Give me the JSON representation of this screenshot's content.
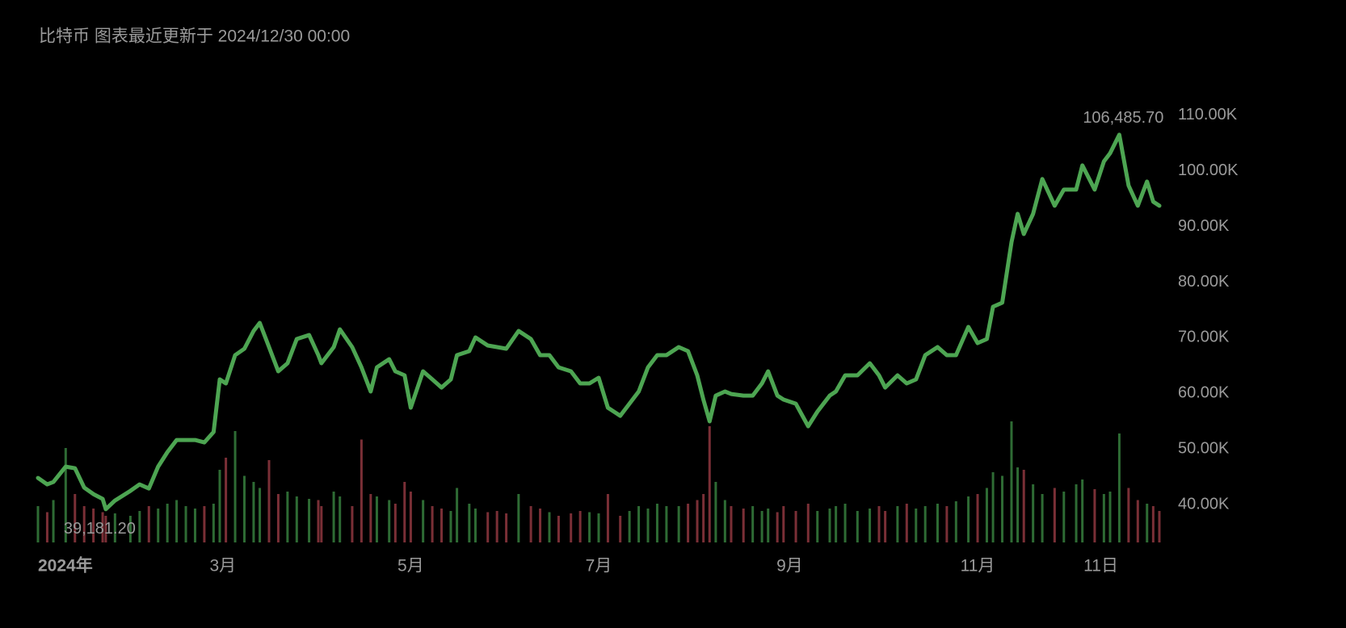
{
  "chart_data": {
    "type": "line",
    "title": "比特币 图表最近更新于 2024/12/30 00:00",
    "x": [
      0,
      3,
      5,
      9,
      12,
      15,
      18,
      21,
      22,
      25,
      30,
      33,
      36,
      39,
      42,
      45,
      48,
      51,
      54,
      57,
      59,
      61,
      64,
      67,
      70,
      72,
      75,
      78,
      81,
      84,
      88,
      91,
      92,
      96,
      98,
      102,
      105,
      108,
      110,
      114,
      116,
      119,
      121,
      125,
      128,
      131,
      134,
      136,
      140,
      142,
      146,
      149,
      152,
      156,
      160,
      163,
      166,
      169,
      173,
      176,
      179,
      182,
      185,
      189,
      192,
      195,
      198,
      201,
      204,
      208,
      211,
      214,
      216,
      218,
      220,
      223,
      225,
      229,
      232,
      235,
      237,
      240,
      242,
      246,
      250,
      253,
      257,
      259,
      262,
      266,
      270,
      273,
      275,
      279,
      282,
      285,
      288,
      292,
      295,
      298,
      302,
      305,
      308,
      310,
      313,
      316,
      318,
      320,
      323,
      326,
      330,
      333,
      337,
      339,
      343,
      346,
      348,
      351,
      354,
      357,
      360,
      362,
      364
    ],
    "values": [
      44790,
      43630,
      44070,
      46820,
      46530,
      43050,
      41890,
      41020,
      39181.2,
      40730,
      42470,
      43630,
      42900,
      46820,
      49440,
      51620,
      51620,
      51620,
      51180,
      53070,
      62510,
      61780,
      66860,
      68020,
      71220,
      72670,
      68310,
      63960,
      65410,
      69770,
      70490,
      66860,
      65410,
      68310,
      71510,
      68310,
      64680,
      60330,
      64680,
      66140,
      63960,
      63230,
      57420,
      63960,
      62510,
      61050,
      62510,
      66860,
      67590,
      70060,
      68600,
      68310,
      68020,
      71220,
      69770,
      66860,
      66860,
      64680,
      63960,
      61780,
      61780,
      62800,
      57420,
      55970,
      58150,
      60330,
      64680,
      66860,
      66860,
      68310,
      67590,
      63230,
      58880,
      54960,
      59600,
      60330,
      59890,
      59600,
      59600,
      61780,
      63960,
      59600,
      58880,
      58150,
      54080,
      56700,
      59600,
      60330,
      63230,
      63230,
      65410,
      63230,
      61050,
      63230,
      61780,
      62510,
      66860,
      68310,
      66860,
      66860,
      71940,
      69040,
      69770,
      75570,
      76300,
      87190,
      92270,
      88640,
      92270,
      98520,
      93720,
      96630,
      96630,
      100980,
      96630,
      101710,
      103160,
      106485.7,
      97350,
      93720,
      98080,
      94450,
      93720
    ],
    "color": "#4da552",
    "volume": {
      "values": [
        30,
        25,
        35,
        78,
        40,
        30,
        28,
        25,
        22,
        24,
        22,
        26,
        30,
        28,
        32,
        35,
        30,
        28,
        30,
        32,
        60,
        70,
        92,
        55,
        50,
        45,
        68,
        40,
        42,
        38,
        36,
        35,
        30,
        42,
        38,
        30,
        85,
        40,
        38,
        35,
        32,
        50,
        42,
        35,
        30,
        28,
        26,
        45,
        32,
        28,
        25,
        26,
        24,
        40,
        30,
        28,
        25,
        22,
        24,
        26,
        25,
        24,
        40,
        22,
        26,
        30,
        28,
        32,
        30,
        30,
        32,
        35,
        40,
        96,
        50,
        35,
        30,
        28,
        30,
        26,
        28,
        25,
        30,
        26,
        32,
        26,
        28,
        30,
        32,
        26,
        28,
        30,
        26,
        30,
        32,
        28,
        30,
        32,
        30,
        34,
        38,
        40,
        45,
        58,
        55,
        100,
        62,
        60,
        48,
        40,
        45,
        42,
        48,
        52,
        44,
        40,
        42,
        90,
        45,
        35,
        32,
        30,
        26
      ],
      "ylim": [
        0,
        100
      ],
      "up_color": "#2e6b34",
      "down_color": "#7a2f36"
    },
    "xlim": [
      0,
      364
    ],
    "xticks": [
      {
        "value": 0,
        "label": "2024年"
      },
      {
        "value": 60,
        "label": "3月"
      },
      {
        "value": 121,
        "label": "5月"
      },
      {
        "value": 182,
        "label": "7月"
      },
      {
        "value": 244,
        "label": "9月"
      },
      {
        "value": 305,
        "label": "11月"
      },
      {
        "value": 345,
        "label": "11日"
      }
    ],
    "ylim": [
      33200,
      116200
    ],
    "yticks": [
      {
        "value": 40000,
        "label": "40.00K"
      },
      {
        "value": 50000,
        "label": "50.00K"
      },
      {
        "value": 60000,
        "label": "60.00K"
      },
      {
        "value": 70000,
        "label": "70.00K"
      },
      {
        "value": 80000,
        "label": "80.00K"
      },
      {
        "value": 90000,
        "label": "90.00K"
      },
      {
        "value": 100000,
        "label": "100.00K"
      },
      {
        "value": 110000,
        "label": "110.00K"
      }
    ],
    "annotations": [
      {
        "x": 351,
        "value": 106485.7,
        "label": "106,485.70"
      },
      {
        "x": 22,
        "value": 39181.2,
        "label": "39,181.20"
      }
    ]
  }
}
